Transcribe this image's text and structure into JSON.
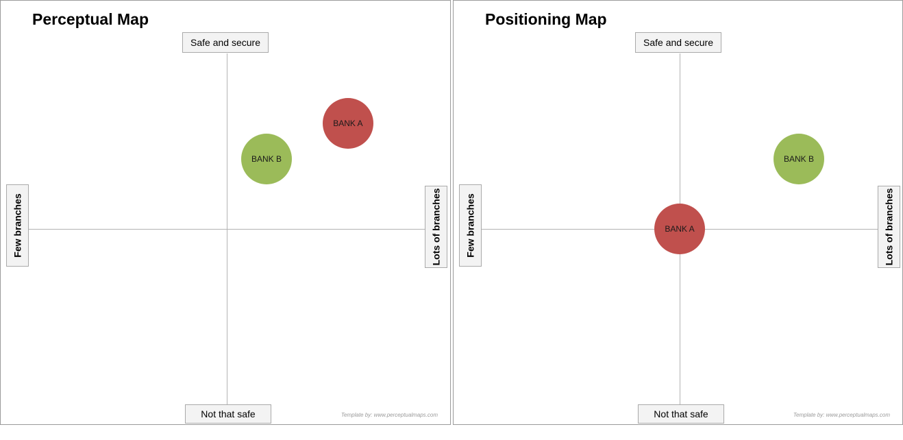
{
  "colors": {
    "bank_a": "#c0504d",
    "bank_b": "#9bbb59",
    "axis": "#b3b3b3",
    "label_bg": "#f3f3f3"
  },
  "maps": [
    {
      "title": "Perceptual Map",
      "axis_labels": {
        "top": "Safe and secure",
        "bottom": "Not that safe",
        "left": "Few branches",
        "right": "Lots of branches"
      },
      "points": [
        {
          "label": "BANK A",
          "branches": 0.61,
          "safety": 0.6,
          "color_key": "bank_a"
        },
        {
          "label": "BANK B",
          "branches": 0.2,
          "safety": 0.4,
          "color_key": "bank_b"
        }
      ],
      "credit": "Template by: www.perceptualmaps.com"
    },
    {
      "title": "Positioning Map",
      "axis_labels": {
        "top": "Safe and secure",
        "bottom": "Not that safe",
        "left": "Few branches",
        "right": "Lots of branches"
      },
      "points": [
        {
          "label": "BANK A",
          "branches": 0.0,
          "safety": 0.0,
          "color_key": "bank_a"
        },
        {
          "label": "BANK B",
          "branches": 0.6,
          "safety": 0.4,
          "color_key": "bank_b"
        }
      ],
      "credit": "Template by: www.perceptualmaps.com"
    }
  ]
}
